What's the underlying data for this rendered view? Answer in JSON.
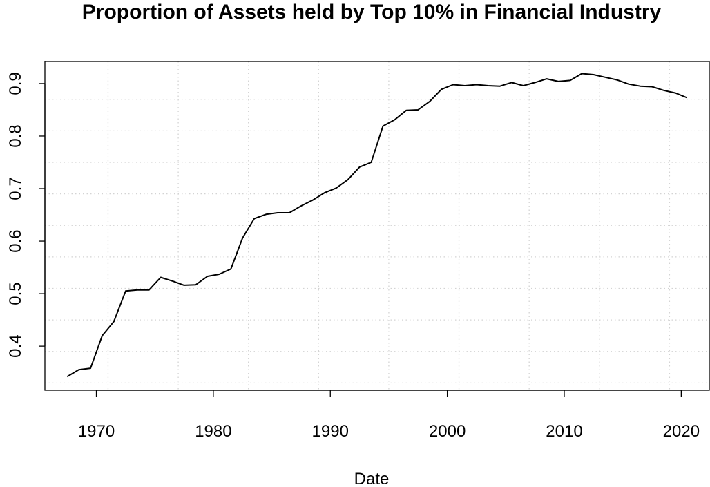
{
  "chart_data": {
    "type": "line",
    "title": "Proportion of Assets held by Top 10% in Financial Industry",
    "xlabel": "Date",
    "ylabel": "",
    "xlim": [
      1965.6,
      2022.4
    ],
    "ylim": [
      0.316,
      0.942
    ],
    "x_ticks": [
      1970,
      1980,
      1990,
      2000,
      2010,
      2020
    ],
    "x_tick_labels": [
      "1970",
      "1980",
      "1990",
      "2000",
      "2010",
      "2020"
    ],
    "y_ticks": [
      0.4,
      0.5,
      0.6,
      0.7,
      0.8,
      0.9
    ],
    "y_tick_labels": [
      "0.4",
      "0.5",
      "0.6",
      "0.7",
      "0.8",
      "0.9"
    ],
    "x_grid": [
      1971,
      1977,
      1983,
      1989,
      1995,
      2001,
      2007,
      2013,
      2019
    ],
    "y_grid": [
      0.33,
      0.39,
      0.45,
      0.51,
      0.57,
      0.63,
      0.69,
      0.75,
      0.81,
      0.87
    ],
    "grid": true,
    "line_color": "#000000",
    "grid_color": "#d3d3d3",
    "series": [
      {
        "x": [
          1967.5,
          1968.5,
          1969.5,
          1970.5,
          1971.5,
          1972.5,
          1973.5,
          1974.5,
          1975.5,
          1976.5,
          1977.5,
          1978.5,
          1979.5,
          1980.5,
          1981.5,
          1982.5,
          1983.5,
          1984.5,
          1985.5,
          1986.5,
          1987.5,
          1988.5,
          1989.5,
          1990.5,
          1991.5,
          1992.5,
          1993.5,
          1994.5,
          1995.5,
          1996.5,
          1997.5,
          1998.5,
          1999.5,
          2000.5,
          2001.5,
          2002.5,
          2003.5,
          2004.5,
          2005.5,
          2006.5,
          2007.5,
          2008.5,
          2009.5,
          2010.5,
          2011.5,
          2012.5,
          2013.5,
          2014.5,
          2015.5,
          2016.5,
          2017.5,
          2018.5,
          2019.5,
          2020.5
        ],
        "values": [
          0.342,
          0.355,
          0.358,
          0.42,
          0.447,
          0.505,
          0.507,
          0.507,
          0.531,
          0.524,
          0.516,
          0.517,
          0.533,
          0.537,
          0.547,
          0.606,
          0.643,
          0.651,
          0.654,
          0.654,
          0.667,
          0.678,
          0.692,
          0.701,
          0.717,
          0.741,
          0.75,
          0.819,
          0.831,
          0.849,
          0.85,
          0.866,
          0.889,
          0.898,
          0.896,
          0.898,
          0.896,
          0.895,
          0.902,
          0.896,
          0.902,
          0.909,
          0.904,
          0.906,
          0.919,
          0.917,
          0.912,
          0.907,
          0.899,
          0.895,
          0.894,
          0.887,
          0.882,
          0.873
        ]
      }
    ]
  }
}
